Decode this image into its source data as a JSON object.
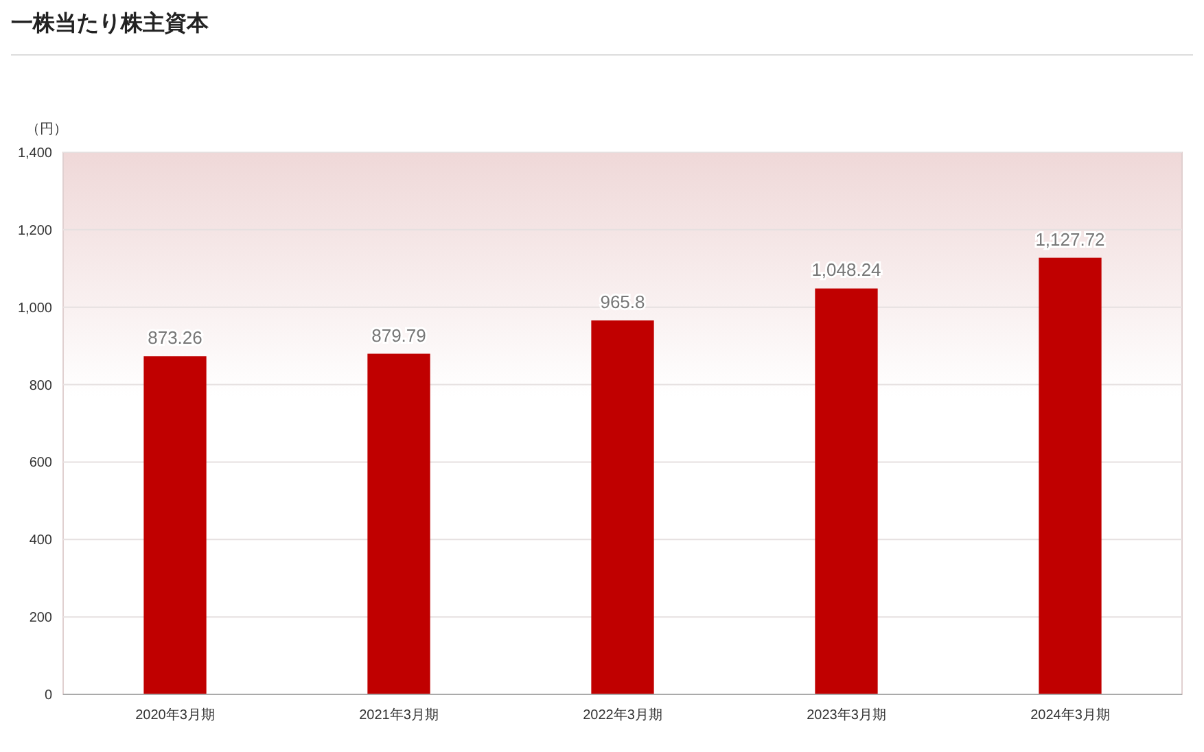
{
  "chart_data": {
    "type": "bar",
    "title": "一株当たり株主資本",
    "ylabel": "（円）",
    "categories": [
      "2020年3月期",
      "2021年3月期",
      "2022年3月期",
      "2023年3月期",
      "2024年3月期"
    ],
    "values": [
      873.26,
      879.79,
      965.8,
      1048.24,
      1127.72
    ],
    "value_labels": [
      "873.26",
      "879.79",
      "965.8",
      "1,048.24",
      "1,127.72"
    ],
    "color": "#c00000",
    "ylim": [
      0,
      1400
    ],
    "yticks": [
      {
        "value": 0,
        "label": "0"
      },
      {
        "value": 200,
        "label": "200"
      },
      {
        "value": 400,
        "label": "400"
      },
      {
        "value": 600,
        "label": "600"
      },
      {
        "value": 800,
        "label": "800"
      },
      {
        "value": 1000,
        "label": "1,000"
      },
      {
        "value": 1200,
        "label": "1,200"
      },
      {
        "value": 1400,
        "label": "1,400"
      }
    ],
    "grid": "y"
  }
}
